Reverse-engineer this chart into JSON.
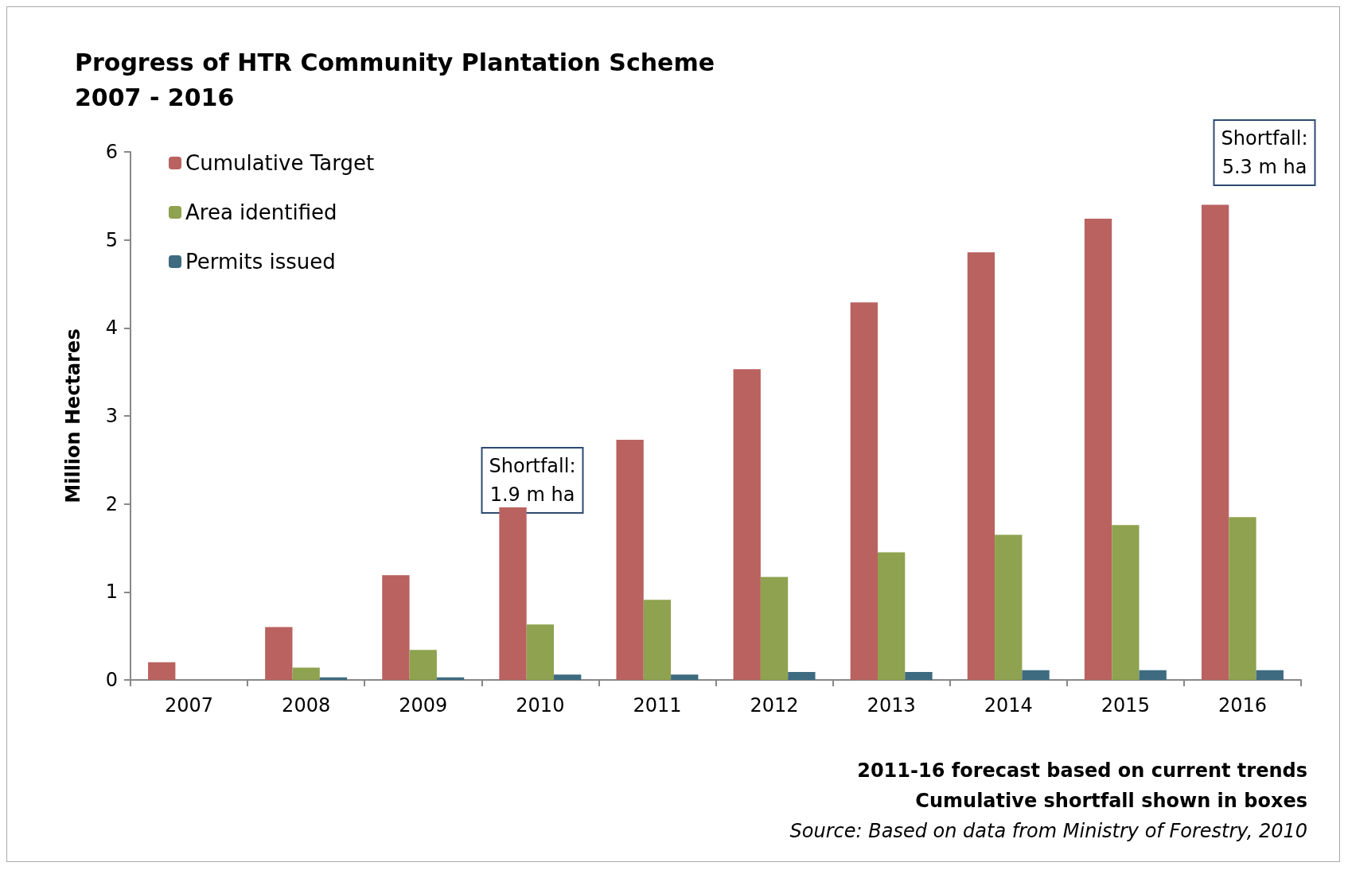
{
  "chart_data": {
    "type": "bar",
    "title": "Progress of HTR Community Plantation Scheme\n2007 - 2016",
    "ylabel": "Million Hectares",
    "categories": [
      "2007",
      "2008",
      "2009",
      "2010",
      "2011",
      "2012",
      "2013",
      "2014",
      "2015",
      "2016"
    ],
    "series": [
      {
        "name": "Cumulative Target",
        "color": "#b9625f",
        "values": [
          0.2,
          0.6,
          1.19,
          1.96,
          2.73,
          3.53,
          4.29,
          4.86,
          5.24,
          5.4
        ]
      },
      {
        "name": "Area identified",
        "color": "#8fa24f",
        "values": [
          0,
          0.14,
          0.34,
          0.63,
          0.91,
          1.17,
          1.45,
          1.65,
          1.76,
          1.85
        ]
      },
      {
        "name": "Permits issued",
        "color": "#3e6b80",
        "values": [
          0,
          0.03,
          0.03,
          0.06,
          0.06,
          0.09,
          0.09,
          0.11,
          0.11,
          0.11
        ]
      }
    ],
    "ylim": [
      0,
      6
    ],
    "yticks": [
      0,
      1,
      2,
      3,
      4,
      5,
      6
    ],
    "grid": false,
    "legend": "top left",
    "annotations": [
      "Shortfall:\n1.9 m ha",
      "Shortfall:\n5.3 m ha",
      "2011-16 forecast based on current trends",
      "Cumulative shortfall shown in boxes",
      "Source: Based on data from Ministry of Forestry, 2010"
    ]
  }
}
